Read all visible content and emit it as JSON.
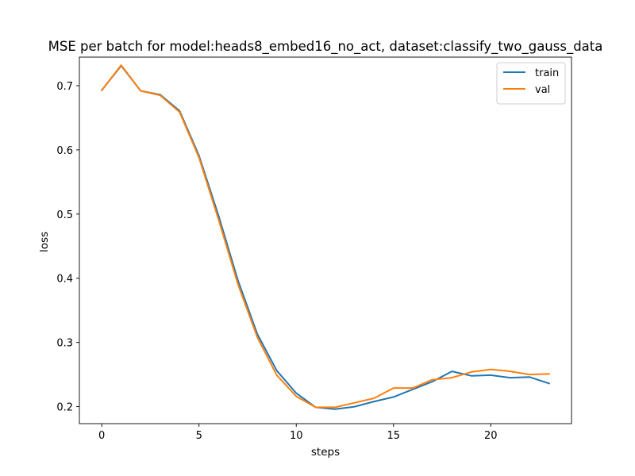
{
  "chart_data": {
    "type": "line",
    "title": "MSE per batch for model:heads8_embed16_no_act, dataset:classify_two_gauss_data",
    "xlabel": "steps",
    "ylabel": "loss",
    "xlim": [
      -1.15,
      24.15
    ],
    "ylim": [
      0.1735,
      0.7445
    ],
    "xticks": [
      0,
      5,
      10,
      15,
      20
    ],
    "yticks": [
      0.2,
      0.3,
      0.4,
      0.5,
      0.6,
      0.7
    ],
    "ytick_labels": [
      "0.2",
      "0.3",
      "0.4",
      "0.5",
      "0.6",
      "0.7"
    ],
    "grid": false,
    "legend_position": "top-right",
    "x": [
      0,
      1,
      2,
      3,
      4,
      5,
      6,
      7,
      8,
      9,
      10,
      11,
      12,
      13,
      14,
      15,
      16,
      17,
      18,
      19,
      20,
      21,
      22,
      23
    ],
    "series": [
      {
        "name": "train",
        "color": "#1f77b4",
        "values": [
          0.693,
          0.731,
          0.692,
          0.686,
          0.661,
          0.591,
          0.498,
          0.397,
          0.313,
          0.256,
          0.221,
          0.199,
          0.196,
          0.2,
          0.208,
          0.215,
          0.227,
          0.239,
          0.255,
          0.248,
          0.249,
          0.245,
          0.246,
          0.236
        ]
      },
      {
        "name": "val",
        "color": "#ff7f0e",
        "values": [
          0.693,
          0.732,
          0.692,
          0.685,
          0.659,
          0.588,
          0.492,
          0.391,
          0.308,
          0.249,
          0.216,
          0.199,
          0.199,
          0.206,
          0.213,
          0.229,
          0.229,
          0.242,
          0.245,
          0.254,
          0.258,
          0.255,
          0.25,
          0.251
        ]
      }
    ]
  }
}
